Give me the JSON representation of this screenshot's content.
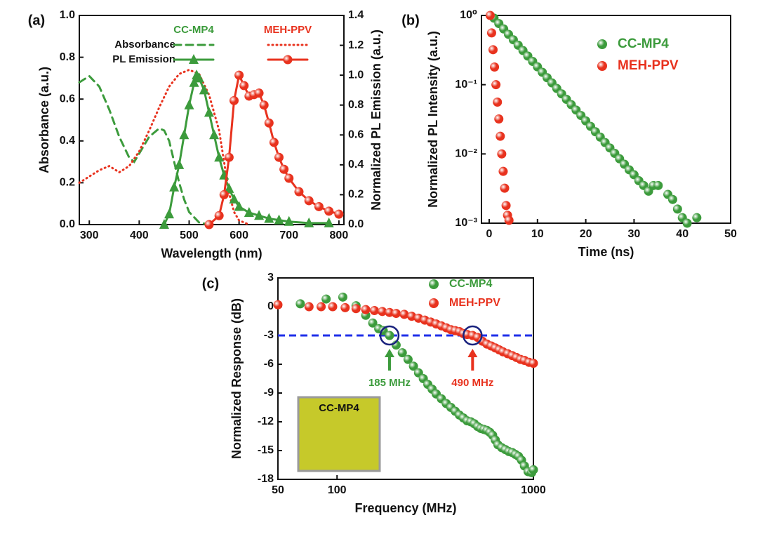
{
  "chart_data": [
    {
      "type": "line",
      "panel": "(a)",
      "xlabel": "Wavelength (nm)",
      "ylabel": "Absorbance (a.u.)",
      "y2label": "Normalized PL Emission (a.u.)",
      "xlim": [
        280,
        810
      ],
      "xticks": [
        300,
        400,
        500,
        600,
        700,
        800
      ],
      "ylim": [
        0,
        1
      ],
      "yticks": [
        {
          "value": 0,
          "label": "0.0"
        },
        0.2,
        0.4,
        0.6,
        0.8,
        {
          "value": 1,
          "label": "1.0"
        }
      ],
      "y2lim": [
        0,
        1.4
      ],
      "y2ticks": [
        {
          "value": 0,
          "label": "0.0"
        },
        0.2,
        0.4,
        0.6,
        0.8,
        {
          "value": 1,
          "label": "1.0"
        },
        1.2,
        1.4
      ],
      "series": [
        {
          "name": "CC-MP4",
          "kind": "Absorbance",
          "color": "#3c9b3c",
          "style": "dashed",
          "x": [
            280,
            300,
            320,
            340,
            360,
            380,
            390,
            400,
            420,
            440,
            450,
            460,
            470,
            480,
            490,
            500,
            520,
            540
          ],
          "values": [
            0.68,
            0.71,
            0.66,
            0.55,
            0.42,
            0.32,
            0.3,
            0.34,
            0.42,
            0.46,
            0.45,
            0.4,
            0.3,
            0.2,
            0.12,
            0.06,
            0.01,
            0
          ]
        },
        {
          "name": "MEH-PPV",
          "kind": "Absorbance",
          "color": "#e8321e",
          "style": "dotted",
          "x": [
            280,
            300,
            320,
            340,
            360,
            380,
            400,
            420,
            440,
            460,
            480,
            500,
            520,
            540,
            560,
            570,
            580,
            590,
            600,
            620
          ],
          "values": [
            0.2,
            0.23,
            0.26,
            0.28,
            0.25,
            0.28,
            0.35,
            0.45,
            0.56,
            0.66,
            0.72,
            0.74,
            0.72,
            0.62,
            0.45,
            0.3,
            0.15,
            0.06,
            0.02,
            0
          ]
        },
        {
          "name": "CC-MP4",
          "kind": "PL Emission",
          "color": "#3c9b3c",
          "style": "solid",
          "marker": "triangle",
          "axis": "y2",
          "x": [
            450,
            460,
            470,
            480,
            490,
            500,
            510,
            515,
            520,
            530,
            540,
            550,
            560,
            570,
            580,
            590,
            600,
            620,
            640,
            660,
            680,
            700,
            740,
            780
          ],
          "values": [
            0,
            0.07,
            0.25,
            0.4,
            0.6,
            0.8,
            0.95,
            1.0,
            0.98,
            0.9,
            0.75,
            0.6,
            0.45,
            0.33,
            0.24,
            0.17,
            0.12,
            0.08,
            0.06,
            0.04,
            0.03,
            0.02,
            0.01,
            0.01
          ]
        },
        {
          "name": "MEH-PPV",
          "kind": "PL Emission",
          "color": "#e8321e",
          "style": "solid",
          "marker": "circle",
          "axis": "y2",
          "x": [
            540,
            560,
            570,
            580,
            590,
            600,
            610,
            620,
            630,
            640,
            650,
            660,
            670,
            680,
            690,
            700,
            720,
            740,
            760,
            780,
            800
          ],
          "values": [
            0,
            0.06,
            0.2,
            0.45,
            0.83,
            1.0,
            0.93,
            0.86,
            0.87,
            0.88,
            0.8,
            0.68,
            0.55,
            0.45,
            0.37,
            0.31,
            0.22,
            0.16,
            0.12,
            0.09,
            0.07
          ]
        }
      ]
    },
    {
      "type": "scatter",
      "panel": "(b)",
      "xlabel": "Time (ns)",
      "ylabel": "Normalized PL Intensity (a.u.)",
      "xlim": [
        -1.6,
        50
      ],
      "xticks": [
        0,
        10,
        20,
        30,
        40,
        50
      ],
      "ylog": true,
      "ylim": [
        0.001,
        1
      ],
      "yticks": [
        {
          "value": 0.001,
          "label": "10⁻³"
        },
        {
          "value": 0.01,
          "label": "10⁻²"
        },
        {
          "value": 0.1,
          "label": "10⁻¹"
        },
        {
          "value": 1,
          "label": "10⁰"
        }
      ],
      "legend": "upper right",
      "series": [
        {
          "name": "CC-MP4",
          "color": "#3c9b3c",
          "x": [
            1,
            2,
            3,
            4,
            5,
            6,
            7,
            8,
            9,
            10,
            11,
            12,
            13,
            14,
            15,
            16,
            17,
            18,
            19,
            20,
            21,
            22,
            23,
            24,
            25,
            26,
            27,
            28,
            29,
            30,
            31,
            32,
            33,
            34,
            35,
            37,
            38,
            39,
            40,
            41,
            43
          ],
          "values": [
            0.914,
            0.763,
            0.638,
            0.533,
            0.445,
            0.372,
            0.311,
            0.259,
            0.217,
            0.181,
            0.151,
            0.126,
            0.106,
            0.0882,
            0.0737,
            0.0615,
            0.0514,
            0.043,
            0.0359,
            0.03,
            0.025,
            0.0209,
            0.0175,
            0.0146,
            0.0122,
            0.0102,
            0.0085,
            0.0071,
            0.0059,
            0.005,
            0.0041,
            0.0035,
            0.0029,
            0.0035,
            0.0035,
            0.0026,
            0.0022,
            0.0016,
            0.0012,
            0.001,
            0.0012
          ]
        },
        {
          "name": "MEH-PPV",
          "color": "#e8321e",
          "x": [
            0.2,
            0.5,
            0.8,
            1.1,
            1.4,
            1.7,
            2.0,
            2.3,
            2.6,
            2.9,
            3.2,
            3.5,
            3.8,
            4.1
          ],
          "values": [
            1.0,
            0.56,
            0.32,
            0.18,
            0.1,
            0.056,
            0.032,
            0.018,
            0.01,
            0.0056,
            0.0032,
            0.0018,
            0.0013,
            0.0011
          ]
        }
      ]
    },
    {
      "type": "scatter",
      "panel": "(c)",
      "xlabel": "Frequency (MHz)",
      "ylabel": "Normalized Response (dB)",
      "xlog": true,
      "xlim": [
        50,
        1000
      ],
      "xticks": [
        50,
        100,
        1000
      ],
      "ylim": [
        -18,
        3
      ],
      "yticks": [
        3,
        0,
        -3,
        -6,
        -9,
        -12,
        -15,
        -18
      ],
      "legend": "upper right",
      "reference_line": {
        "value": -3,
        "color": "#1f2fe8"
      },
      "annotations": [
        {
          "text": "185 MHz",
          "x": 185,
          "y": -3,
          "color": "#3c9b3c"
        },
        {
          "text": "490 MHz",
          "x": 490,
          "y": -3,
          "color": "#e8321e"
        }
      ],
      "inset_label": "CC-MP4",
      "series": [
        {
          "name": "CC-MP4",
          "color": "#3c9b3c",
          "x": [
            65,
            88,
            107,
            125,
            140,
            152,
            163,
            172,
            185,
            200,
            215,
            230,
            245,
            260,
            275,
            290,
            305,
            320,
            340,
            360,
            380,
            400,
            420,
            440,
            460,
            480,
            500,
            520,
            540,
            560,
            580,
            600,
            620,
            640,
            660,
            690,
            720,
            750,
            780,
            810,
            840,
            870,
            900,
            940,
            980,
            1000
          ],
          "values": [
            0.3,
            0.8,
            1.0,
            0.1,
            -0.9,
            -1.7,
            -2.3,
            -2.5,
            -3.0,
            -4.0,
            -4.8,
            -5.5,
            -6.2,
            -6.9,
            -7.5,
            -8.1,
            -8.6,
            -9.1,
            -9.6,
            -10.1,
            -10.5,
            -10.9,
            -11.3,
            -11.6,
            -11.9,
            -12.0,
            -12.2,
            -12.5,
            -12.7,
            -12.8,
            -12.9,
            -13.1,
            -13.4,
            -13.9,
            -14.4,
            -14.7,
            -14.9,
            -15.1,
            -15.2,
            -15.4,
            -15.6,
            -16.0,
            -16.6,
            -17.2,
            -17.3,
            -17.0
          ]
        },
        {
          "name": "MEH-PPV",
          "color": "#e8321e",
          "x": [
            50,
            72,
            83,
            95,
            110,
            125,
            140,
            155,
            170,
            185,
            200,
            220,
            240,
            260,
            280,
            300,
            320,
            340,
            360,
            380,
            400,
            420,
            440,
            460,
            490,
            520,
            550,
            580,
            610,
            640,
            670,
            700,
            740,
            780,
            820,
            860,
            900,
            950,
            1000
          ],
          "values": [
            0.2,
            0.0,
            0.0,
            0.0,
            -0.1,
            -0.2,
            -0.3,
            -0.4,
            -0.5,
            -0.6,
            -0.7,
            -0.8,
            -1.0,
            -1.2,
            -1.4,
            -1.6,
            -1.8,
            -2.0,
            -2.2,
            -2.4,
            -2.5,
            -2.6,
            -2.8,
            -2.9,
            -3.0,
            -3.2,
            -3.6,
            -3.9,
            -4.1,
            -4.3,
            -4.5,
            -4.7,
            -4.9,
            -5.1,
            -5.3,
            -5.5,
            -5.6,
            -5.8,
            -5.9
          ]
        }
      ]
    }
  ]
}
